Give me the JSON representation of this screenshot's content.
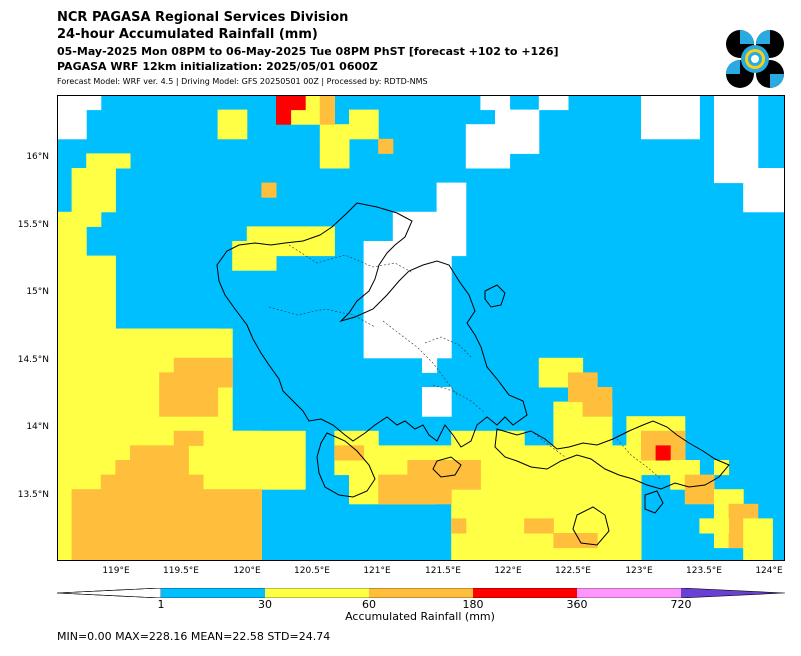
{
  "header": {
    "title": "NCR PAGASA Regional Services Division",
    "subtitle": "24-hour Accumulated Rainfall (mm)",
    "valid_period": "05-May-2025 Mon 08PM to 06-May-2025 Tue 08PM PhST [forecast +102 to +126]",
    "initialization": "PAGASA WRF 12km initialization: 2025/05/01 0600Z",
    "model_info": "Forecast Model: WRF ver. 4.5 | Driving Model: GFS 20250501 00Z | Processed by: RDTD-NMS"
  },
  "logo": {
    "icon": "pagasa-logo-icon",
    "colors": [
      "#000000",
      "#29abe2",
      "#f7d117"
    ]
  },
  "map": {
    "lat_ticks": [
      "16°N",
      "15.5°N",
      "15°N",
      "14.5°N",
      "14°N",
      "13.5°N"
    ],
    "lon_ticks": [
      "119°E",
      "119.5°E",
      "120°E",
      "120.5°E",
      "121°E",
      "121.5°E",
      "122°E",
      "122.5°E",
      "123°E",
      "123.5°E",
      "124°E"
    ]
  },
  "colorbar": {
    "label": "Accumulated Rainfall (mm)",
    "ticks": [
      "1",
      "30",
      "60",
      "180",
      "360",
      "720"
    ],
    "colors": [
      "#ffffff",
      "#00bfff",
      "#ffff46",
      "#ffbe3c",
      "#ff0000",
      "#ff96ff",
      "#6a3fd4"
    ]
  },
  "stats": {
    "text": "MIN=0.00   MAX=228.16   MEAN=22.58   STD=24.74"
  }
}
